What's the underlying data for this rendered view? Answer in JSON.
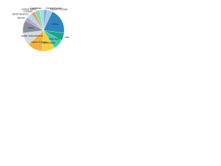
{
  "chart_data": {
    "type": "pie",
    "categories": [
      "Central Europe",
      "Eastern Europe",
      "China",
      "Africa",
      "Middle East",
      "Southeast Asia",
      "Western Europe",
      "Indian subcontinent",
      "Other",
      "Mexico",
      "South America",
      "Canada",
      "United States",
      "Caribbean"
    ],
    "values": [
      3,
      4,
      20,
      6,
      8,
      10,
      12,
      10,
      10,
      3,
      4,
      3,
      4,
      3
    ],
    "colors": [
      "#7fb3d5",
      "#a9cce3",
      "#2e86c1",
      "#17a589",
      "#48c9b0",
      "#f4d03f",
      "#f5b041",
      "#d5dbdb",
      "#85929e",
      "#c39bd3",
      "#a3e4d7",
      "#f1948a",
      "#82e0aa",
      "#aed6f1"
    ]
  }
}
